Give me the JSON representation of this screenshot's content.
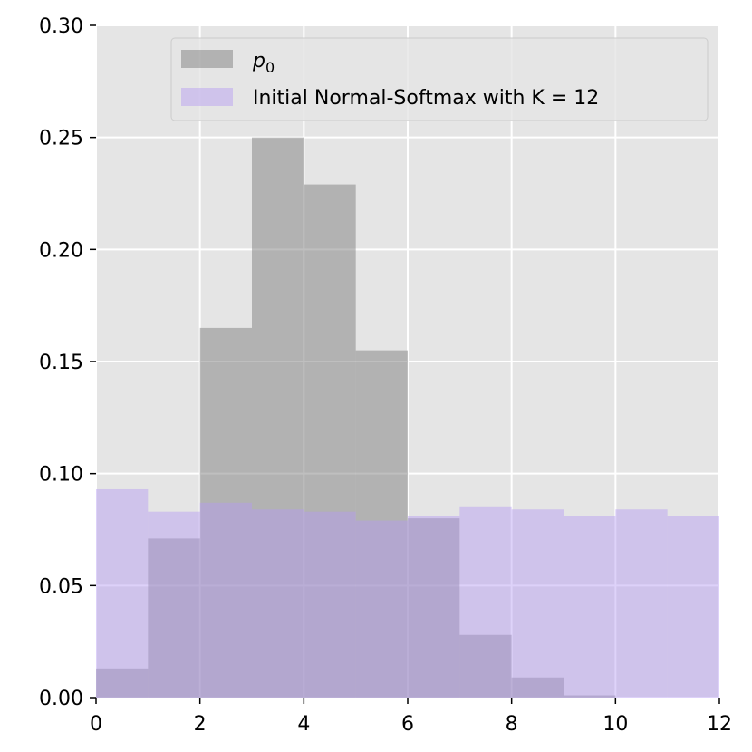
{
  "chart_data": {
    "type": "bar",
    "subtype": "histogram",
    "xlim": [
      0,
      12
    ],
    "ylim": [
      0,
      0.3
    ],
    "xticks": [
      0,
      2,
      4,
      6,
      8,
      10,
      12
    ],
    "xtick_labels": [
      "0",
      "2",
      "4",
      "6",
      "8",
      "10",
      "12"
    ],
    "yticks": [
      0.0,
      0.05,
      0.1,
      0.15,
      0.2,
      0.25,
      0.3
    ],
    "ytick_labels": [
      "0.00",
      "0.05",
      "0.10",
      "0.15",
      "0.20",
      "0.25",
      "0.30"
    ],
    "grid": true,
    "legend_position": "top-right",
    "bin_edges": [
      0,
      1,
      2,
      3,
      4,
      5,
      6,
      7,
      8,
      9,
      10,
      11,
      12
    ],
    "series": [
      {
        "name": "p",
        "name_subscript": "0",
        "color": "#808080",
        "alpha": 0.5,
        "values": [
          0.013,
          0.071,
          0.165,
          0.25,
          0.229,
          0.155,
          0.08,
          0.028,
          0.009,
          0.001,
          0.0,
          0.0
        ]
      },
      {
        "name": "Initial Normal-Softmax with K = 12",
        "color": "#b399f2",
        "alpha": 0.45,
        "values": [
          0.093,
          0.083,
          0.087,
          0.084,
          0.083,
          0.079,
          0.081,
          0.085,
          0.084,
          0.081,
          0.084,
          0.081
        ]
      }
    ]
  },
  "colors": {
    "axes_background": "#e5e5e5",
    "grid": "#ffffff"
  }
}
